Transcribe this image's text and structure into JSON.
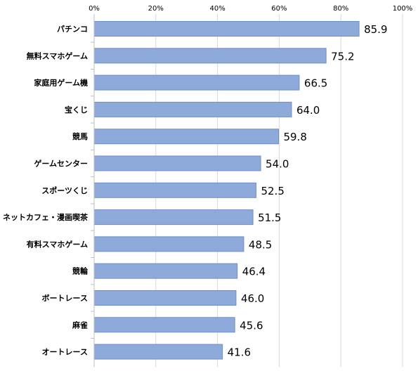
{
  "chart_data": {
    "type": "bar",
    "orientation": "horizontal",
    "title": "",
    "xlabel": "",
    "ylabel": "",
    "xlim": [
      0,
      100
    ],
    "x_ticks": [
      0,
      20,
      40,
      60,
      80,
      100
    ],
    "x_tick_labels": [
      "0%",
      "20%",
      "40%",
      "60%",
      "80%",
      "100%"
    ],
    "x_axis_position": "top",
    "grid": "vertical",
    "legend": "none",
    "bar_color": "#8eaadb",
    "bar_border_color": "#6f8fc9",
    "grid_color": "#d9d9d9",
    "text_color": "#000000",
    "categories": [
      "パチンコ",
      "無料スマホゲーム",
      "家庭用ゲーム機",
      "宝くじ",
      "競馬",
      "ゲームセンター",
      "スポーツくじ",
      "ネットカフェ・漫画喫茶",
      "有料スマホゲーム",
      "競輪",
      "ボートレース",
      "麻雀",
      "オートレース"
    ],
    "values": [
      85.9,
      75.2,
      66.5,
      64.0,
      59.8,
      54.0,
      52.5,
      51.5,
      48.5,
      46.4,
      46.0,
      45.6,
      41.6
    ],
    "data_labels": [
      "85.9",
      "75.2",
      "66.5",
      "64.0",
      "59.8",
      "54.0",
      "52.5",
      "51.5",
      "48.5",
      "46.4",
      "46.0",
      "45.6",
      "41.6"
    ]
  }
}
